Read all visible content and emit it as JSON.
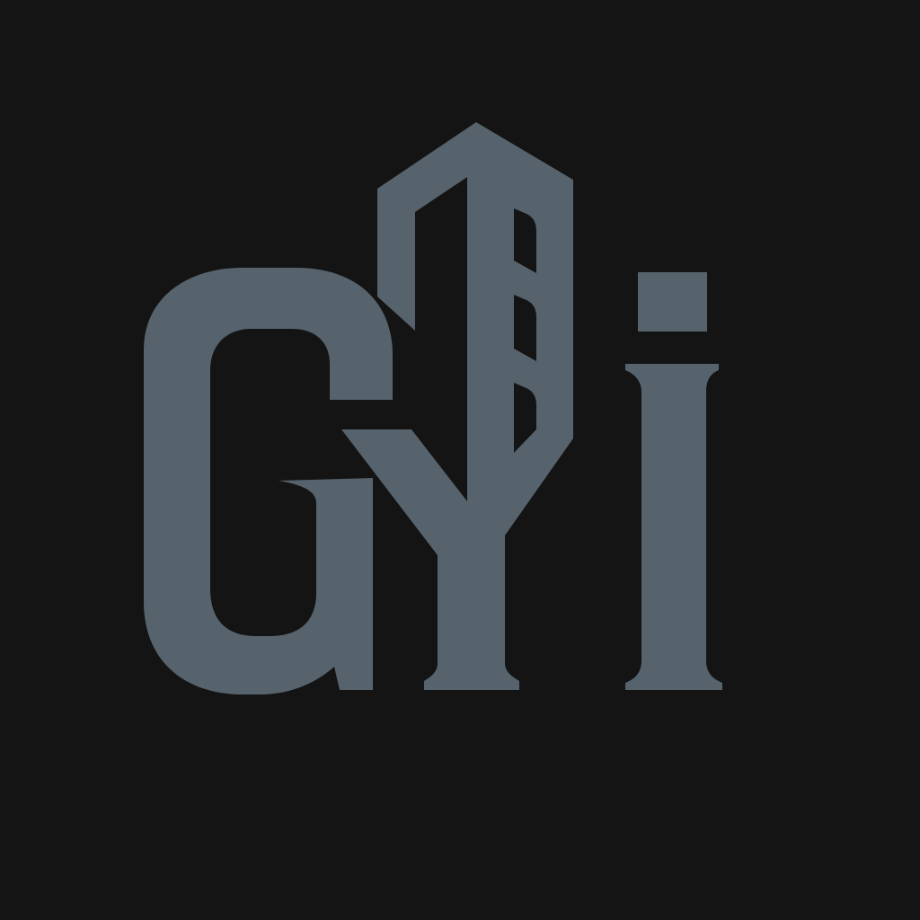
{
  "logo": {
    "text": "GYi",
    "mark_color": "#56636c",
    "background_color": "#141414",
    "icon": "building-tower-icon"
  }
}
